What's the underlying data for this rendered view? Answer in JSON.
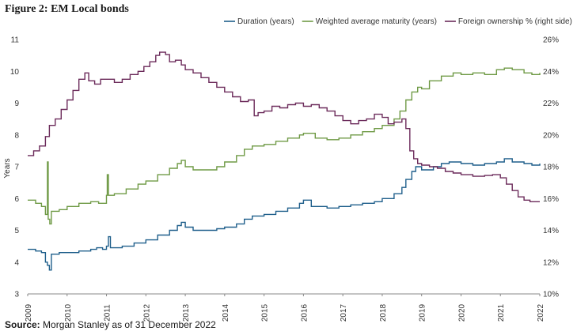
{
  "figure": {
    "title": "Figure 2: EM Local bonds",
    "source_label": "Source:",
    "source_text": " Morgan Stanley as of 31 December 2022"
  },
  "chart_data": {
    "type": "line",
    "title": "Figure 2: EM Local bonds",
    "xlabel": "",
    "ylabel": "Years",
    "y2label": "",
    "ylim": [
      3,
      11
    ],
    "y2lim": [
      10,
      26
    ],
    "yticks": [
      3,
      4,
      5,
      6,
      7,
      8,
      9,
      10,
      11
    ],
    "y2ticks": [
      "10%",
      "12%",
      "14%",
      "16%",
      "18%",
      "20%",
      "22%",
      "24%",
      "26%"
    ],
    "y2tick_values": [
      10,
      12,
      14,
      16,
      18,
      20,
      22,
      24,
      26
    ],
    "xlim": [
      2009,
      2022
    ],
    "xticks": [
      "2009",
      "2010",
      "2011",
      "2012",
      "2013",
      "2014",
      "2015",
      "2016",
      "2017",
      "2018",
      "2019",
      "2020",
      "2021",
      "2022"
    ],
    "legend_position": "top-right",
    "grid": false,
    "series": [
      {
        "name": "Duration (years)",
        "axis": "left",
        "color": "#1f5f8b",
        "step": true,
        "points": [
          [
            2009.0,
            4.4
          ],
          [
            2009.2,
            4.35
          ],
          [
            2009.35,
            4.3
          ],
          [
            2009.45,
            4.0
          ],
          [
            2009.5,
            3.9
          ],
          [
            2009.55,
            3.75
          ],
          [
            2009.6,
            4.25
          ],
          [
            2009.8,
            4.3
          ],
          [
            2010.0,
            4.3
          ],
          [
            2010.3,
            4.35
          ],
          [
            2010.6,
            4.4
          ],
          [
            2010.75,
            4.45
          ],
          [
            2010.9,
            4.4
          ],
          [
            2011.0,
            4.5
          ],
          [
            2011.05,
            4.8
          ],
          [
            2011.1,
            4.45
          ],
          [
            2011.4,
            4.5
          ],
          [
            2011.7,
            4.6
          ],
          [
            2012.0,
            4.7
          ],
          [
            2012.3,
            4.85
          ],
          [
            2012.6,
            5.0
          ],
          [
            2012.8,
            5.15
          ],
          [
            2012.9,
            5.25
          ],
          [
            2013.0,
            5.1
          ],
          [
            2013.2,
            5.0
          ],
          [
            2013.5,
            5.0
          ],
          [
            2013.8,
            5.05
          ],
          [
            2014.0,
            5.1
          ],
          [
            2014.3,
            5.2
          ],
          [
            2014.5,
            5.35
          ],
          [
            2014.7,
            5.45
          ],
          [
            2015.0,
            5.5
          ],
          [
            2015.3,
            5.6
          ],
          [
            2015.6,
            5.7
          ],
          [
            2015.9,
            5.85
          ],
          [
            2016.0,
            5.95
          ],
          [
            2016.2,
            5.75
          ],
          [
            2016.6,
            5.7
          ],
          [
            2016.9,
            5.75
          ],
          [
            2017.2,
            5.8
          ],
          [
            2017.5,
            5.85
          ],
          [
            2017.8,
            5.9
          ],
          [
            2018.0,
            6.0
          ],
          [
            2018.3,
            6.15
          ],
          [
            2018.5,
            6.35
          ],
          [
            2018.6,
            6.6
          ],
          [
            2018.75,
            6.85
          ],
          [
            2018.85,
            7.0
          ],
          [
            2019.0,
            6.9
          ],
          [
            2019.3,
            7.0
          ],
          [
            2019.5,
            7.1
          ],
          [
            2019.7,
            7.15
          ],
          [
            2020.0,
            7.1
          ],
          [
            2020.3,
            7.05
          ],
          [
            2020.6,
            7.1
          ],
          [
            2020.9,
            7.15
          ],
          [
            2021.1,
            7.25
          ],
          [
            2021.3,
            7.15
          ],
          [
            2021.6,
            7.1
          ],
          [
            2021.8,
            7.05
          ],
          [
            2022.0,
            7.1
          ]
        ]
      },
      {
        "name": "Weighted average maturity (years)",
        "axis": "left",
        "color": "#6f9a45",
        "step": true,
        "points": [
          [
            2009.0,
            5.95
          ],
          [
            2009.2,
            5.85
          ],
          [
            2009.35,
            5.75
          ],
          [
            2009.45,
            5.5
          ],
          [
            2009.5,
            7.15
          ],
          [
            2009.52,
            5.35
          ],
          [
            2009.56,
            5.2
          ],
          [
            2009.6,
            5.6
          ],
          [
            2009.8,
            5.65
          ],
          [
            2010.0,
            5.75
          ],
          [
            2010.3,
            5.85
          ],
          [
            2010.6,
            5.9
          ],
          [
            2010.8,
            5.85
          ],
          [
            2011.0,
            6.1
          ],
          [
            2011.02,
            6.75
          ],
          [
            2011.05,
            6.1
          ],
          [
            2011.2,
            6.15
          ],
          [
            2011.5,
            6.3
          ],
          [
            2011.8,
            6.45
          ],
          [
            2012.0,
            6.55
          ],
          [
            2012.3,
            6.75
          ],
          [
            2012.6,
            6.95
          ],
          [
            2012.8,
            7.1
          ],
          [
            2012.9,
            7.2
          ],
          [
            2013.0,
            7.0
          ],
          [
            2013.2,
            6.9
          ],
          [
            2013.5,
            6.9
          ],
          [
            2013.8,
            7.0
          ],
          [
            2014.0,
            7.15
          ],
          [
            2014.3,
            7.35
          ],
          [
            2014.5,
            7.55
          ],
          [
            2014.7,
            7.65
          ],
          [
            2015.0,
            7.7
          ],
          [
            2015.3,
            7.8
          ],
          [
            2015.6,
            7.9
          ],
          [
            2015.9,
            8.0
          ],
          [
            2016.0,
            8.05
          ],
          [
            2016.3,
            7.9
          ],
          [
            2016.6,
            7.85
          ],
          [
            2016.9,
            7.9
          ],
          [
            2017.2,
            8.0
          ],
          [
            2017.5,
            8.1
          ],
          [
            2017.8,
            8.2
          ],
          [
            2018.0,
            8.3
          ],
          [
            2018.3,
            8.5
          ],
          [
            2018.45,
            8.75
          ],
          [
            2018.6,
            9.1
          ],
          [
            2018.75,
            9.35
          ],
          [
            2018.9,
            9.5
          ],
          [
            2019.0,
            9.45
          ],
          [
            2019.2,
            9.7
          ],
          [
            2019.5,
            9.85
          ],
          [
            2019.8,
            9.95
          ],
          [
            2020.0,
            9.9
          ],
          [
            2020.3,
            9.95
          ],
          [
            2020.6,
            9.9
          ],
          [
            2020.9,
            10.05
          ],
          [
            2021.1,
            10.1
          ],
          [
            2021.3,
            10.05
          ],
          [
            2021.6,
            9.95
          ],
          [
            2021.8,
            9.9
          ],
          [
            2022.0,
            9.95
          ]
        ]
      },
      {
        "name": "Foreign ownership % (right side)",
        "axis": "right",
        "color": "#6b2a5a",
        "step": true,
        "points": [
          [
            2009.0,
            18.7
          ],
          [
            2009.15,
            19.0
          ],
          [
            2009.3,
            19.3
          ],
          [
            2009.45,
            19.9
          ],
          [
            2009.55,
            20.6
          ],
          [
            2009.7,
            21.0
          ],
          [
            2009.85,
            21.6
          ],
          [
            2010.0,
            22.2
          ],
          [
            2010.15,
            22.8
          ],
          [
            2010.3,
            23.5
          ],
          [
            2010.45,
            23.9
          ],
          [
            2010.55,
            23.4
          ],
          [
            2010.7,
            23.2
          ],
          [
            2010.85,
            23.5
          ],
          [
            2011.0,
            23.5
          ],
          [
            2011.2,
            23.3
          ],
          [
            2011.4,
            23.5
          ],
          [
            2011.6,
            23.8
          ],
          [
            2011.8,
            24.0
          ],
          [
            2011.95,
            24.3
          ],
          [
            2012.1,
            24.6
          ],
          [
            2012.25,
            25.0
          ],
          [
            2012.35,
            25.2
          ],
          [
            2012.5,
            25.05
          ],
          [
            2012.6,
            24.6
          ],
          [
            2012.75,
            24.7
          ],
          [
            2012.9,
            24.4
          ],
          [
            2013.0,
            24.1
          ],
          [
            2013.2,
            23.9
          ],
          [
            2013.4,
            23.6
          ],
          [
            2013.6,
            23.3
          ],
          [
            2013.8,
            23.0
          ],
          [
            2014.0,
            22.7
          ],
          [
            2014.2,
            22.4
          ],
          [
            2014.4,
            22.1
          ],
          [
            2014.6,
            22.2
          ],
          [
            2014.75,
            21.2
          ],
          [
            2014.85,
            21.4
          ],
          [
            2015.0,
            21.5
          ],
          [
            2015.2,
            21.8
          ],
          [
            2015.4,
            21.7
          ],
          [
            2015.6,
            21.9
          ],
          [
            2015.8,
            22.0
          ],
          [
            2016.0,
            21.8
          ],
          [
            2016.2,
            21.9
          ],
          [
            2016.4,
            21.7
          ],
          [
            2016.6,
            21.5
          ],
          [
            2016.8,
            21.2
          ],
          [
            2017.0,
            20.9
          ],
          [
            2017.2,
            20.7
          ],
          [
            2017.4,
            20.9
          ],
          [
            2017.6,
            21.0
          ],
          [
            2017.8,
            21.3
          ],
          [
            2018.0,
            21.1
          ],
          [
            2018.15,
            20.7
          ],
          [
            2018.3,
            20.8
          ],
          [
            2018.5,
            21.0
          ],
          [
            2018.6,
            20.4
          ],
          [
            2018.7,
            19.0
          ],
          [
            2018.8,
            18.5
          ],
          [
            2018.9,
            18.2
          ],
          [
            2019.0,
            18.1
          ],
          [
            2019.2,
            18.0
          ],
          [
            2019.4,
            17.9
          ],
          [
            2019.6,
            17.7
          ],
          [
            2019.8,
            17.6
          ],
          [
            2020.0,
            17.5
          ],
          [
            2020.3,
            17.4
          ],
          [
            2020.6,
            17.45
          ],
          [
            2020.8,
            17.5
          ],
          [
            2021.0,
            17.3
          ],
          [
            2021.15,
            16.9
          ],
          [
            2021.3,
            16.5
          ],
          [
            2021.45,
            16.1
          ],
          [
            2021.6,
            15.9
          ],
          [
            2021.75,
            15.8
          ],
          [
            2022.0,
            15.8
          ]
        ]
      }
    ]
  }
}
